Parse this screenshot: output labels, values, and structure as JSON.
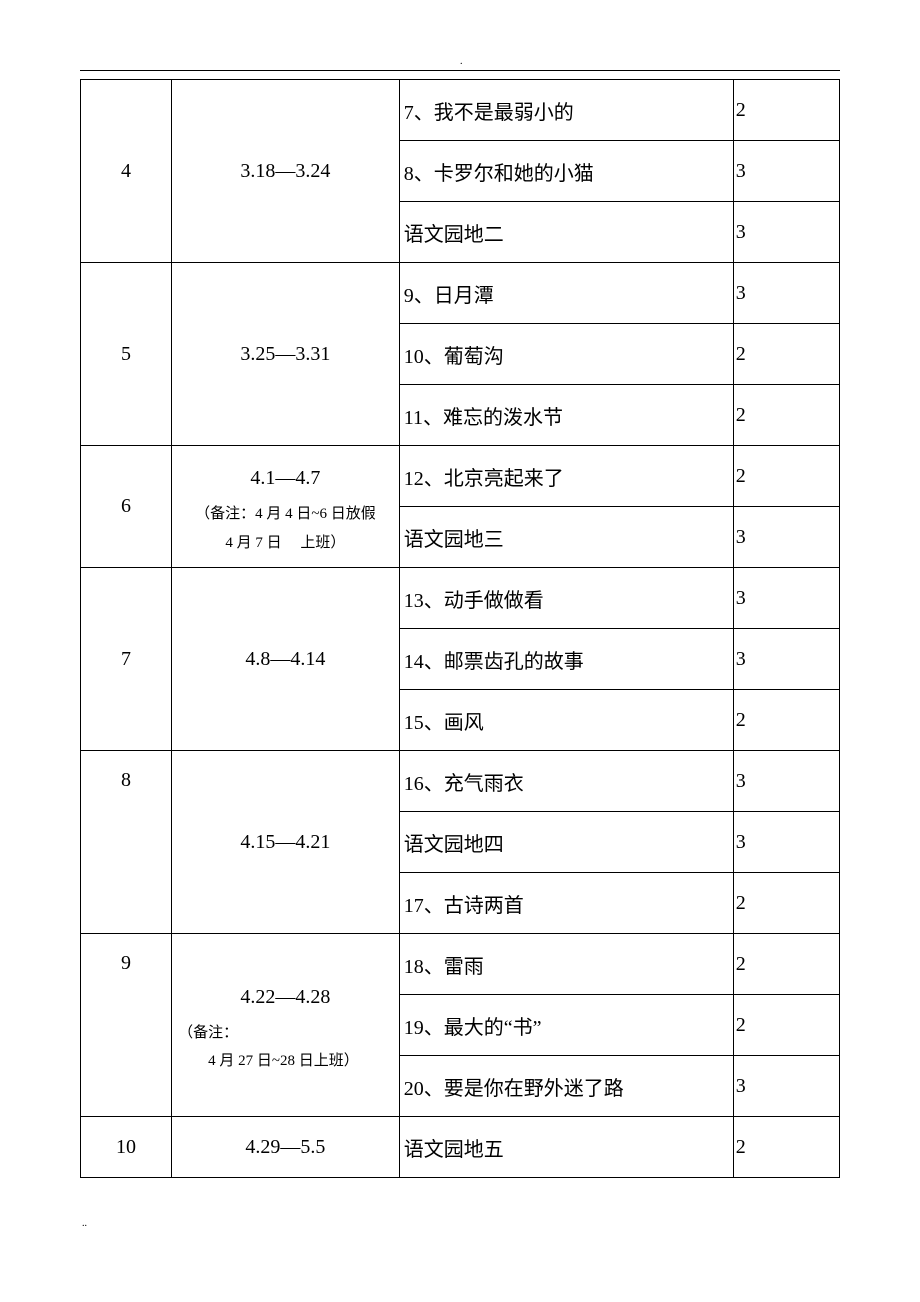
{
  "rows": [
    {
      "week": "4",
      "date_main": "3.18―3.24",
      "date_note_lines": [],
      "topics": [
        {
          "text": "7、我不是最弱小的",
          "hours": "2"
        },
        {
          "text": "8、卡罗尔和她的小猫",
          "hours": "3"
        },
        {
          "text": "语文园地二",
          "hours": "3"
        }
      ],
      "week_valign_top": false
    },
    {
      "week": "5",
      "date_main": "3.25―3.31",
      "date_note_lines": [],
      "topics": [
        {
          "text": "9、日月潭",
          "hours": "3"
        },
        {
          "text": "10、葡萄沟",
          "hours": "2"
        },
        {
          "text": "11、难忘的泼水节",
          "hours": "2"
        }
      ],
      "week_valign_top": false
    },
    {
      "week": "6",
      "date_main": "4.1―4.7",
      "date_note_lines": [
        "（备注：4 月 4 日~6 日放假",
        "4 月 7 日　 上班）"
      ],
      "topics": [
        {
          "text": "12、北京亮起来了",
          "hours": "2"
        },
        {
          "text": "语文园地三",
          "hours": "3"
        }
      ],
      "week_valign_top": false
    },
    {
      "week": "7",
      "date_main": "4.8―4.14",
      "date_note_lines": [],
      "topics": [
        {
          "text": "13、动手做做看",
          "hours": "3"
        },
        {
          "text": "14、邮票齿孔的故事",
          "hours": "3"
        },
        {
          "text": "15、画风",
          "hours": "2"
        }
      ],
      "week_valign_top": false
    },
    {
      "week": "8",
      "date_main": "4.15―4.21",
      "date_note_lines": [],
      "topics": [
        {
          "text": "16、充气雨衣",
          "hours": "3"
        },
        {
          "text": "语文园地四",
          "hours": "3"
        },
        {
          "text": "17、古诗两首",
          "hours": "2"
        }
      ],
      "week_valign_top": true
    },
    {
      "week": "9",
      "date_main": "4.22―4.28",
      "date_note_lines": [
        "（备注：",
        "4 月 27 日~28 日上班）"
      ],
      "date_note_align": "left",
      "topics": [
        {
          "text": "18、雷雨",
          "hours": "2"
        },
        {
          "text": "19、最大的“书”",
          "hours": "2"
        },
        {
          "text": "20、要是你在野外迷了路",
          "hours": "3"
        }
      ],
      "week_valign_top": true
    },
    {
      "week": "10",
      "date_main": "4.29―5.5",
      "date_note_lines": [],
      "topics": [
        {
          "text": "语文园地五",
          "hours": "2"
        }
      ],
      "week_valign_top": false
    }
  ],
  "footer": ".."
}
